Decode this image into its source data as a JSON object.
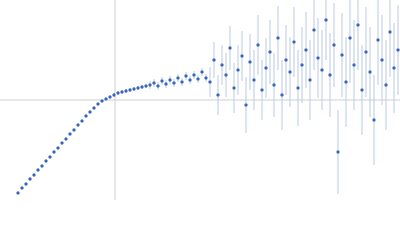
{
  "chart_data": {
    "type": "scatter",
    "color": "#3a66b8",
    "error_color": "#b9c9e6",
    "zero_lines": true,
    "xlim": [
      -1.15,
      2.85
    ],
    "ylim": [
      -1,
      1
    ],
    "x": [
      -0.97,
      -0.93,
      -0.89,
      -0.85,
      -0.81,
      -0.77,
      -0.73,
      -0.69,
      -0.65,
      -0.61,
      -0.57,
      -0.53,
      -0.49,
      -0.45,
      -0.41,
      -0.37,
      -0.33,
      -0.29,
      -0.25,
      -0.21,
      -0.17,
      -0.13,
      -0.09,
      -0.05,
      -0.01,
      0.03,
      0.07,
      0.11,
      0.15,
      0.19,
      0.23,
      0.27,
      0.31,
      0.35,
      0.39,
      0.43,
      0.47,
      0.51,
      0.55,
      0.59,
      0.63,
      0.67,
      0.71,
      0.75,
      0.79,
      0.83,
      0.87,
      0.91,
      0.95,
      0.99,
      1.03,
      1.07,
      1.11,
      1.15,
      1.19,
      1.23,
      1.27,
      1.31,
      1.35,
      1.39,
      1.43,
      1.47,
      1.51,
      1.55,
      1.59,
      1.63,
      1.67,
      1.71,
      1.75,
      1.79,
      1.83,
      1.87,
      1.91,
      1.95,
      1.99,
      2.03,
      2.07,
      2.11,
      2.15,
      2.19,
      2.23,
      2.27,
      2.31,
      2.35,
      2.39,
      2.43,
      2.47,
      2.51,
      2.55,
      2.59,
      2.63,
      2.67,
      2.71,
      2.75,
      2.79,
      2.83
    ],
    "values": [
      -0.93,
      -0.88,
      -0.84,
      -0.79,
      -0.75,
      -0.7,
      -0.66,
      -0.61,
      -0.57,
      -0.52,
      -0.48,
      -0.43,
      -0.39,
      -0.34,
      -0.3,
      -0.25,
      -0.21,
      -0.16,
      -0.12,
      -0.08,
      -0.04,
      -0.01,
      0.01,
      0.03,
      0.05,
      0.07,
      0.08,
      0.09,
      0.1,
      0.11,
      0.12,
      0.13,
      0.14,
      0.15,
      0.17,
      0.14,
      0.19,
      0.16,
      0.2,
      0.17,
      0.22,
      0.18,
      0.24,
      0.2,
      0.25,
      0.21,
      0.28,
      0.22,
      0.18,
      0.4,
      0.05,
      0.35,
      0.25,
      0.52,
      0.12,
      0.3,
      0.44,
      -0.05,
      0.38,
      0.2,
      0.55,
      0.1,
      0.32,
      0.48,
      0.15,
      0.62,
      0.05,
      0.4,
      0.28,
      0.58,
      0.12,
      0.35,
      0.5,
      0.2,
      0.7,
      0.42,
      0.3,
      0.8,
      0.25,
      0.55,
      -0.52,
      0.45,
      0.18,
      0.62,
      0.35,
      0.75,
      0.1,
      0.48,
      0.28,
      -0.2,
      0.6,
      0.4,
      0.15,
      0.68,
      0.32,
      0.5
    ],
    "errors": [
      0.01,
      0.01,
      0.01,
      0.01,
      0.01,
      0.01,
      0.01,
      0.01,
      0.01,
      0.01,
      0.01,
      0.01,
      0.01,
      0.01,
      0.01,
      0.01,
      0.01,
      0.01,
      0.01,
      0.01,
      0.01,
      0.01,
      0.01,
      0.01,
      0.02,
      0.02,
      0.02,
      0.02,
      0.02,
      0.02,
      0.02,
      0.02,
      0.02,
      0.04,
      0.04,
      0.04,
      0.04,
      0.04,
      0.04,
      0.04,
      0.04,
      0.04,
      0.04,
      0.04,
      0.04,
      0.04,
      0.04,
      0.04,
      0.15,
      0.18,
      0.2,
      0.2,
      0.22,
      0.22,
      0.25,
      0.25,
      0.25,
      0.28,
      0.28,
      0.3,
      0.3,
      0.3,
      0.3,
      0.32,
      0.32,
      0.32,
      0.35,
      0.35,
      0.35,
      0.35,
      0.38,
      0.38,
      0.38,
      0.4,
      0.4,
      0.4,
      0.4,
      0.4,
      0.42,
      0.42,
      0.42,
      0.42,
      0.45,
      0.45,
      0.45,
      0.45,
      0.45,
      0.45,
      0.45,
      0.45,
      0.45,
      0.45,
      0.45,
      0.45,
      0.45,
      0.45
    ]
  }
}
